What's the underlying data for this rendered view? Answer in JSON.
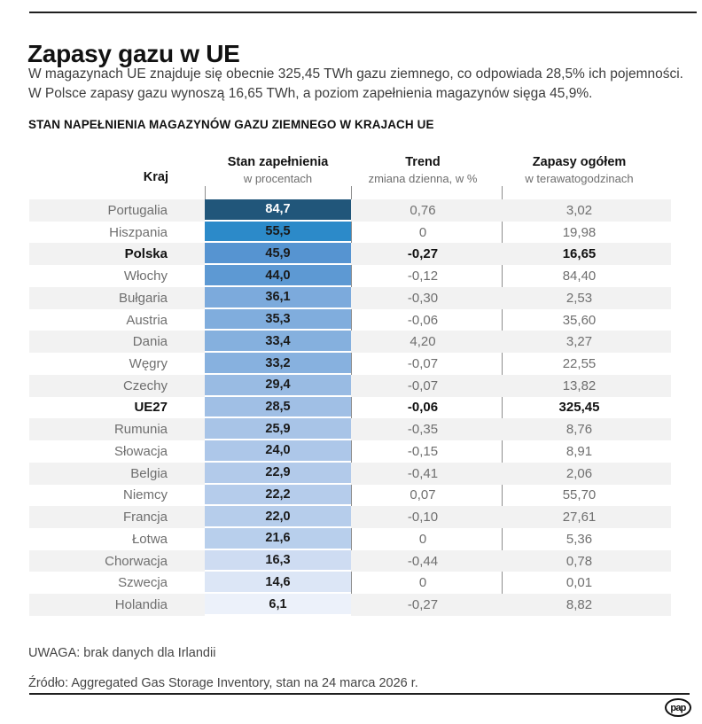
{
  "page": {
    "title": "Zapasy gazu w UE",
    "intro_line1": "W magazynach UE znajduje się obecnie 325,45 TWh gazu ziemnego, co odpowiada 28,5% ich pojemności.",
    "intro_line2": "W Polsce zapasy gazu wynoszą 16,65 TWh, a poziom zapełnienia magazynów sięga 45,9%.",
    "section_title": "STAN NAPEŁNIENIA MAGAZYNÓW GAZU ZIEMNEGO W KRAJACH UE",
    "note": "UWAGA: brak danych dla Irlandii",
    "source": "Źródło: Aggregated Gas Storage Inventory, stan na 24 marca 2026 r.",
    "logo_text": "pap"
  },
  "table": {
    "headers": {
      "country": "Kraj",
      "fill_title": "Stan zapełnienia",
      "fill_sub": "w procentach",
      "trend_title": "Trend",
      "trend_sub": "zmiana dzienna, w %",
      "total_title": "Zapasy ogółem",
      "total_sub": "w terawatogodzinach"
    },
    "colors": {
      "stripe": "#f2f2f2",
      "divider": "#8d8d8d",
      "text_muted": "#6f6f6f",
      "text_strong": "#111111"
    },
    "rows": [
      {
        "country": "Portugalia",
        "fill": "84,7",
        "trend": "0,76",
        "total": "3,02",
        "bar_color": "#21567a",
        "bar_text": "#ffffff",
        "bold": false
      },
      {
        "country": "Hiszpania",
        "fill": "55,5",
        "trend": "0",
        "total": "19,98",
        "bar_color": "#2c8ac9",
        "bar_text": "#1a1a1a",
        "bold": false
      },
      {
        "country": "Polska",
        "fill": "45,9",
        "trend": "-0,27",
        "total": "16,65",
        "bar_color": "#5694d1",
        "bar_text": "#1a1a1a",
        "bold": true
      },
      {
        "country": "Włochy",
        "fill": "44,0",
        "trend": "-0,12",
        "total": "84,40",
        "bar_color": "#5d99d3",
        "bar_text": "#1a1a1a",
        "bold": false
      },
      {
        "country": "Bułgaria",
        "fill": "36,1",
        "trend": "-0,30",
        "total": "2,53",
        "bar_color": "#7caadc",
        "bar_text": "#1a1a1a",
        "bold": false
      },
      {
        "country": "Austria",
        "fill": "35,3",
        "trend": "-0,06",
        "total": "35,60",
        "bar_color": "#80addd",
        "bar_text": "#1a1a1a",
        "bold": false
      },
      {
        "country": "Dania",
        "fill": "33,4",
        "trend": "4,20",
        "total": "3,27",
        "bar_color": "#85b0de",
        "bar_text": "#1a1a1a",
        "bold": false
      },
      {
        "country": "Węgry",
        "fill": "33,2",
        "trend": "-0,07",
        "total": "22,55",
        "bar_color": "#87b1df",
        "bar_text": "#1a1a1a",
        "bold": false
      },
      {
        "country": "Czechy",
        "fill": "29,4",
        "trend": "-0,07",
        "total": "13,82",
        "bar_color": "#99bbe3",
        "bar_text": "#1a1a1a",
        "bold": false
      },
      {
        "country": "UE27",
        "fill": "28,5",
        "trend": "-0,06",
        "total": "325,45",
        "bar_color": "#a0bfe5",
        "bar_text": "#1a1a1a",
        "bold": true
      },
      {
        "country": "Rumunia",
        "fill": "25,9",
        "trend": "-0,35",
        "total": "8,76",
        "bar_color": "#a8c4e7",
        "bar_text": "#1a1a1a",
        "bold": false
      },
      {
        "country": "Słowacja",
        "fill": "24,0",
        "trend": "-0,15",
        "total": "8,91",
        "bar_color": "#adc7e9",
        "bar_text": "#1a1a1a",
        "bold": false
      },
      {
        "country": "Belgia",
        "fill": "22,9",
        "trend": "-0,41",
        "total": "2,06",
        "bar_color": "#b2caea",
        "bar_text": "#1a1a1a",
        "bold": false
      },
      {
        "country": "Niemcy",
        "fill": "22,2",
        "trend": "0,07",
        "total": "55,70",
        "bar_color": "#b5cceb",
        "bar_text": "#1a1a1a",
        "bold": false
      },
      {
        "country": "Francja",
        "fill": "22,0",
        "trend": "-0,10",
        "total": "27,61",
        "bar_color": "#b6cdeb",
        "bar_text": "#1a1a1a",
        "bold": false
      },
      {
        "country": "Łotwa",
        "fill": "21,6",
        "trend": "0",
        "total": "5,36",
        "bar_color": "#b8cfec",
        "bar_text": "#1a1a1a",
        "bold": false
      },
      {
        "country": "Chorwacja",
        "fill": "16,3",
        "trend": "-0,44",
        "total": "0,78",
        "bar_color": "#cedcf2",
        "bar_text": "#1a1a1a",
        "bold": false
      },
      {
        "country": "Szwecja",
        "fill": "14,6",
        "trend": "0",
        "total": "0,01",
        "bar_color": "#dce6f6",
        "bar_text": "#1a1a1a",
        "bold": false
      },
      {
        "country": "Holandia",
        "fill": "6,1",
        "trend": "-0,27",
        "total": "8,82",
        "bar_color": "#ecf1fa",
        "bar_text": "#1a1a1a",
        "bold": false
      }
    ]
  },
  "chart_data": {
    "type": "table",
    "title": "STAN NAPEŁNIENIA MAGAZYNÓW GAZU ZIEMNEGO W KRAJACH UE",
    "columns": [
      "Kraj",
      "Stan zapełnienia (w procentach)",
      "Trend (zmiana dzienna, w %)",
      "Zapasy ogółem (w terawatogodzinach)"
    ],
    "value_encoding": "fill percentage shown as full-width cell shaded from light blue (low) to dark blue (high)",
    "rows": [
      [
        "Portugalia",
        84.7,
        0.76,
        3.02
      ],
      [
        "Hiszpania",
        55.5,
        0,
        19.98
      ],
      [
        "Polska",
        45.9,
        -0.27,
        16.65
      ],
      [
        "Włochy",
        44.0,
        -0.12,
        84.4
      ],
      [
        "Bułgaria",
        36.1,
        -0.3,
        2.53
      ],
      [
        "Austria",
        35.3,
        -0.06,
        35.6
      ],
      [
        "Dania",
        33.4,
        4.2,
        3.27
      ],
      [
        "Węgry",
        33.2,
        -0.07,
        22.55
      ],
      [
        "Czechy",
        29.4,
        -0.07,
        13.82
      ],
      [
        "UE27",
        28.5,
        -0.06,
        325.45
      ],
      [
        "Rumunia",
        25.9,
        -0.35,
        8.76
      ],
      [
        "Słowacja",
        24.0,
        -0.15,
        8.91
      ],
      [
        "Belgia",
        22.9,
        -0.41,
        2.06
      ],
      [
        "Niemcy",
        22.2,
        0.07,
        55.7
      ],
      [
        "Francja",
        22.0,
        -0.1,
        27.61
      ],
      [
        "Łotwa",
        21.6,
        0,
        5.36
      ],
      [
        "Chorwacja",
        16.3,
        -0.44,
        0.78
      ],
      [
        "Szwecja",
        14.6,
        0,
        0.01
      ],
      [
        "Holandia",
        6.1,
        -0.27,
        8.82
      ]
    ],
    "highlighted_rows": [
      "Polska",
      "UE27"
    ]
  }
}
